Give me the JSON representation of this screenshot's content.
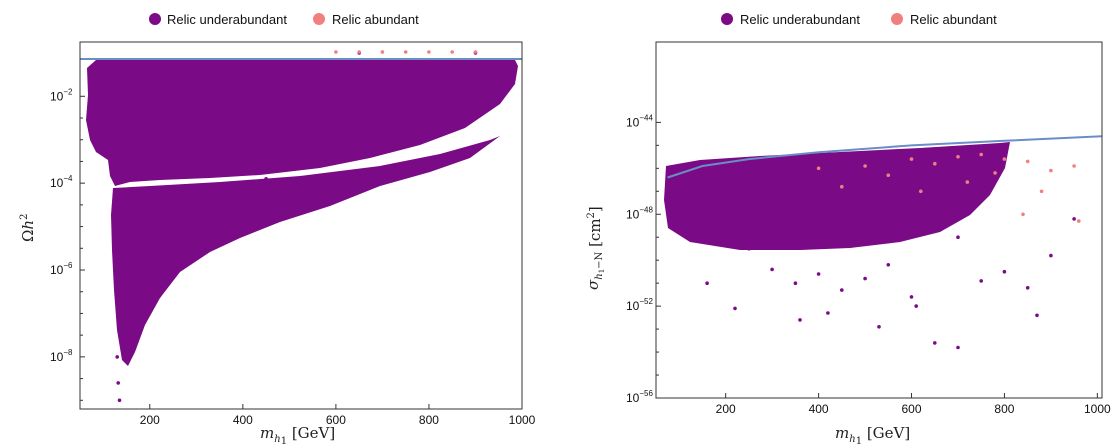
{
  "colors": {
    "underabundant": "#7b0a86",
    "abundant": "#f08080",
    "bound_line": "#6a8dc6"
  },
  "chart_data": [
    {
      "type": "scatter",
      "title": "",
      "xlabel": "m_{h_1} [GeV]",
      "ylabel": "Ωh^2",
      "xlim": [
        50,
        1000
      ],
      "ylim_log10": [
        -9.2,
        -0.75
      ],
      "y_scale": "log",
      "x_ticks": [
        200,
        400,
        600,
        800,
        1000
      ],
      "x_tick_labels": [
        "200",
        "400",
        "600",
        "800",
        "1000"
      ],
      "y_ticks": [
        {
          "base": "10",
          "exp": "−2",
          "log10": -2
        },
        {
          "base": "10",
          "exp": "−4",
          "log10": -4
        },
        {
          "base": "10",
          "exp": "−6",
          "log10": -6
        },
        {
          "base": "10",
          "exp": "−8",
          "log10": -8
        }
      ],
      "legend": {
        "position": "top-center",
        "entries": [
          "Relic underabundant",
          "Relic abundant"
        ]
      },
      "series": [
        {
          "name": "Relic underabundant",
          "color": "#7b0a86",
          "points": [
            [
              75,
              -2.0
            ],
            [
              80,
              -1.3
            ],
            [
              90,
              -1.6
            ],
            [
              100,
              -2.5
            ],
            [
              110,
              -2.9
            ],
            [
              120,
              -3.6
            ],
            [
              125,
              -5.0
            ],
            [
              128,
              -6.5
            ],
            [
              130,
              -8.0
            ],
            [
              132,
              -8.6
            ],
            [
              135,
              -9.0
            ],
            [
              138,
              -7.5
            ],
            [
              140,
              -7.0
            ],
            [
              150,
              -6.0
            ],
            [
              160,
              -5.5
            ],
            [
              170,
              -7.7
            ],
            [
              200,
              -6.4
            ],
            [
              220,
              -6.6
            ],
            [
              250,
              -6.0
            ],
            [
              300,
              -5.0
            ],
            [
              350,
              -4.6
            ],
            [
              400,
              -4.2
            ],
            [
              450,
              -3.9
            ],
            [
              500,
              -3.6
            ],
            [
              550,
              -3.4
            ],
            [
              600,
              -3.1
            ],
            [
              650,
              -2.9
            ],
            [
              700,
              -2.7
            ],
            [
              750,
              -2.4
            ],
            [
              800,
              -2.2
            ],
            [
              850,
              -1.9
            ],
            [
              900,
              -1.6
            ],
            [
              950,
              -1.3
            ],
            [
              980,
              -1.2
            ],
            [
              150,
              -3.5
            ],
            [
              200,
              -3.2
            ],
            [
              300,
              -2.8
            ],
            [
              400,
              -2.3
            ],
            [
              500,
              -2.0
            ],
            [
              600,
              -1.7
            ],
            [
              700,
              -1.4
            ],
            [
              800,
              -1.2
            ],
            [
              900,
              -1.0
            ],
            [
              250,
              -1.5
            ],
            [
              450,
              -1.2
            ],
            [
              650,
              -1.0
            ]
          ]
        },
        {
          "name": "Relic abundant",
          "color": "#f08080",
          "points": [
            [
              600,
              -0.98
            ],
            [
              650,
              -0.98
            ],
            [
              700,
              -0.98
            ],
            [
              750,
              -0.98
            ],
            [
              800,
              -0.98
            ],
            [
              850,
              -0.98
            ],
            [
              900,
              -0.98
            ]
          ]
        }
      ],
      "bound": {
        "type": "horizontal",
        "log10": -0.92
      }
    },
    {
      "type": "scatter",
      "title": "",
      "xlabel": "m_{h_1} [GeV]",
      "ylabel": "σ_{h_1−N} [cm^2]",
      "xlim": [
        50,
        1010
      ],
      "ylim_log10": [
        -56,
        -40.5
      ],
      "y_scale": "log",
      "x_ticks": [
        200,
        400,
        600,
        800,
        1000
      ],
      "x_tick_labels": [
        "200",
        "400",
        "600",
        "800",
        "1000"
      ],
      "y_ticks": [
        {
          "base": "10",
          "exp": "−44",
          "log10": -44
        },
        {
          "base": "10",
          "exp": "−48",
          "log10": -48
        },
        {
          "base": "10",
          "exp": "−52",
          "log10": -52
        },
        {
          "base": "10",
          "exp": "−56",
          "log10": -56
        }
      ],
      "legend": {
        "position": "top-center",
        "entries": [
          "Relic underabundant",
          "Relic abundant"
        ]
      },
      "series": [
        {
          "name": "Relic underabundant",
          "color": "#7b0a86",
          "points": [
            [
              100,
              -46.8
            ],
            [
              150,
              -47.5
            ],
            [
              200,
              -48.6
            ],
            [
              250,
              -49.5
            ],
            [
              300,
              -50.4
            ],
            [
              350,
              -51.0
            ],
            [
              400,
              -50.6
            ],
            [
              450,
              -51.3
            ],
            [
              500,
              -50.8
            ],
            [
              550,
              -50.2
            ],
            [
              600,
              -51.6
            ],
            [
              650,
              -53.6
            ],
            [
              700,
              -53.8
            ],
            [
              750,
              -50.9
            ],
            [
              800,
              -50.5
            ],
            [
              850,
              -51.2
            ],
            [
              900,
              -49.8
            ],
            [
              950,
              -48.2
            ],
            [
              160,
              -51.0
            ],
            [
              220,
              -52.1
            ],
            [
              360,
              -52.6
            ],
            [
              420,
              -52.3
            ],
            [
              530,
              -52.9
            ],
            [
              610,
              -52.0
            ],
            [
              870,
              -52.4
            ],
            [
              700,
              -49.0
            ],
            [
              300,
              -48.0
            ],
            [
              500,
              -47.2
            ]
          ]
        },
        {
          "name": "Relic abundant",
          "color": "#f08080",
          "points": [
            [
              400,
              -46.0
            ],
            [
              450,
              -46.8
            ],
            [
              500,
              -45.9
            ],
            [
              550,
              -46.3
            ],
            [
              600,
              -45.6
            ],
            [
              650,
              -45.8
            ],
            [
              700,
              -45.5
            ],
            [
              750,
              -45.4
            ],
            [
              800,
              -45.6
            ],
            [
              850,
              -45.7
            ],
            [
              900,
              -46.1
            ],
            [
              950,
              -45.9
            ],
            [
              620,
              -47.0
            ],
            [
              720,
              -46.6
            ],
            [
              780,
              -46.2
            ],
            [
              880,
              -47.0
            ],
            [
              960,
              -48.3
            ],
            [
              840,
              -48.0
            ]
          ]
        }
      ],
      "bound": {
        "type": "curve",
        "points": [
          [
            75,
            -46.4
          ],
          [
            150,
            -45.9
          ],
          [
            250,
            -45.6
          ],
          [
            400,
            -45.3
          ],
          [
            600,
            -45.0
          ],
          [
            800,
            -44.8
          ],
          [
            1010,
            -44.6
          ]
        ]
      }
    }
  ]
}
